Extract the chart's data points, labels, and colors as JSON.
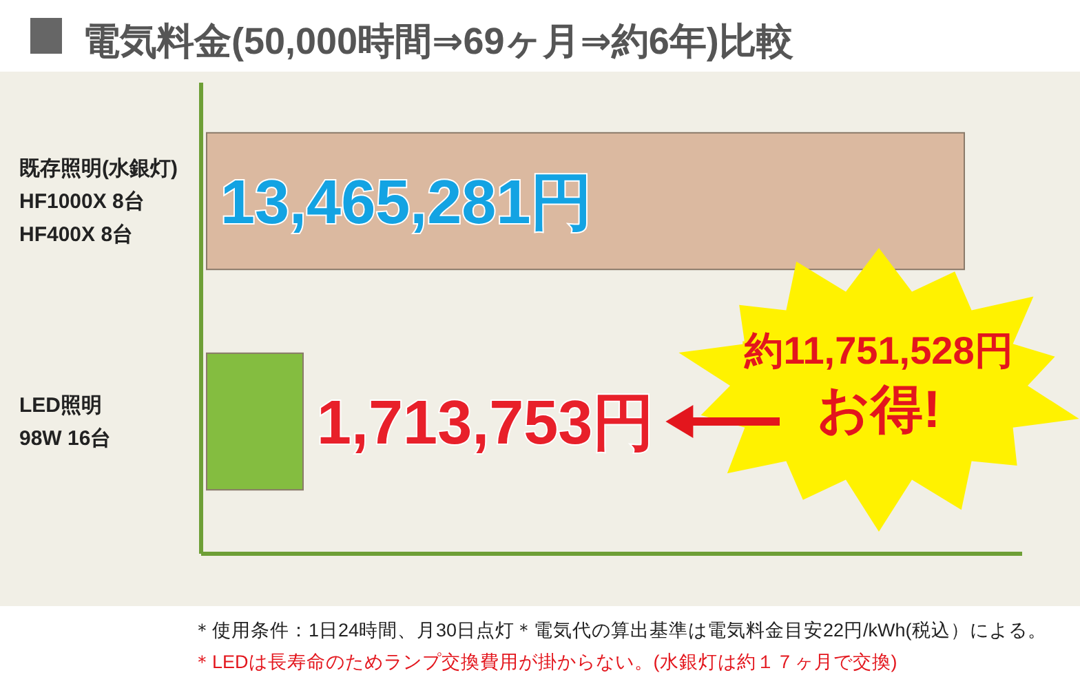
{
  "chart_data": {
    "type": "bar",
    "orientation": "horizontal",
    "title": "電気料金(50,000時間⇒69ヶ月⇒約6年)比較",
    "categories": [
      "既存照明(水銀灯)\nHF1000X 8台\nHF400X 8台",
      "LED照明\n98W 16台"
    ],
    "values": [
      13465281,
      1713753
    ],
    "colors": [
      "#dbb9a0",
      "#84bd40"
    ],
    "value_labels": [
      "13,465,281円",
      "1,713,753円"
    ],
    "annotations": [
      "約11,751,528円",
      "お得!",
      "＊使用条件：1日24時間、月30日点灯＊電気代の算出基準は電気料金目安22円/kWh(税込）による。",
      "＊LEDは長寿命のためランプ交換費用が掛からない。(水銀灯は約１７ヶ月で交換)"
    ],
    "tick_labels": "y"
  }
}
